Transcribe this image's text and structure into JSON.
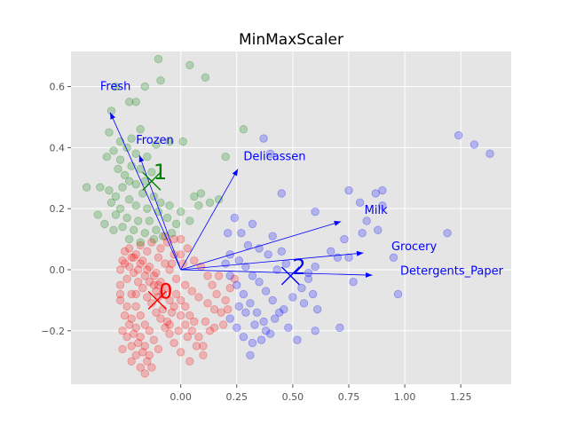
{
  "chart_data": {
    "type": "scatter",
    "title": "MinMaxScaler",
    "xlabel": "",
    "ylabel": "",
    "xlim": [
      -0.49,
      1.475
    ],
    "ylim": [
      -0.375,
      0.715
    ],
    "xticks": [
      0.0,
      0.25,
      0.5,
      0.75,
      1.0,
      1.25
    ],
    "xtick_labels": [
      "0.00",
      "0.25",
      "0.50",
      "0.75",
      "1.00",
      "1.25"
    ],
    "yticks": [
      -0.2,
      0.0,
      0.2,
      0.4,
      0.6
    ],
    "ytick_labels": [
      "−0.2",
      "0.0",
      "0.2",
      "0.4",
      "0.6"
    ],
    "grid": true,
    "background": "#e5e5e5",
    "clusters": [
      {
        "label": "0",
        "color": "#ff0000",
        "center": [
          -0.105,
          -0.1
        ],
        "points": [
          [
            -0.25,
            0.06
          ],
          [
            -0.22,
            0.04
          ],
          [
            -0.18,
            0.02
          ],
          [
            -0.15,
            0.0
          ],
          [
            -0.12,
            -0.02
          ],
          [
            -0.1,
            -0.05
          ],
          [
            -0.08,
            -0.08
          ],
          [
            -0.05,
            -0.1
          ],
          [
            -0.03,
            -0.12
          ],
          [
            0.0,
            -0.15
          ],
          [
            0.02,
            -0.18
          ],
          [
            0.05,
            -0.2
          ],
          [
            0.08,
            -0.22
          ],
          [
            0.1,
            -0.25
          ],
          [
            -0.2,
            -0.28
          ],
          [
            -0.22,
            -0.25
          ],
          [
            -0.24,
            -0.22
          ],
          [
            -0.26,
            -0.2
          ],
          [
            -0.27,
            -0.1
          ],
          [
            -0.27,
            -0.05
          ],
          [
            -0.27,
            0.0
          ],
          [
            -0.26,
            0.03
          ],
          [
            -0.24,
            -0.03
          ],
          [
            -0.22,
            -0.08
          ],
          [
            -0.2,
            -0.12
          ],
          [
            -0.18,
            -0.15
          ],
          [
            -0.16,
            -0.18
          ],
          [
            -0.14,
            -0.2
          ],
          [
            -0.12,
            -0.23
          ],
          [
            -0.1,
            -0.26
          ],
          [
            -0.18,
            0.08
          ],
          [
            -0.15,
            0.06
          ],
          [
            -0.1,
            0.04
          ],
          [
            -0.07,
            0.02
          ],
          [
            -0.05,
            0.0
          ],
          [
            -0.02,
            -0.03
          ],
          [
            0.02,
            -0.05
          ],
          [
            0.05,
            -0.07
          ],
          [
            0.08,
            -0.09
          ],
          [
            0.12,
            -0.11
          ],
          [
            0.15,
            -0.13
          ],
          [
            0.18,
            -0.14
          ],
          [
            -0.23,
            0.01
          ],
          [
            -0.21,
            -0.01
          ],
          [
            -0.19,
            -0.04
          ],
          [
            -0.17,
            -0.06
          ],
          [
            -0.15,
            -0.09
          ],
          [
            -0.13,
            -0.11
          ],
          [
            -0.11,
            -0.14
          ],
          [
            -0.09,
            -0.16
          ],
          [
            -0.07,
            -0.19
          ],
          [
            -0.05,
            -0.21
          ],
          [
            -0.03,
            -0.24
          ],
          [
            0.0,
            -0.27
          ],
          [
            0.04,
            -0.3
          ],
          [
            0.1,
            -0.28
          ],
          [
            -0.25,
            -0.15
          ],
          [
            -0.23,
            -0.18
          ],
          [
            -0.21,
            -0.21
          ],
          [
            -0.19,
            -0.24
          ],
          [
            -0.17,
            -0.27
          ],
          [
            -0.15,
            -0.3
          ],
          [
            -0.13,
            -0.32
          ],
          [
            -0.2,
            0.05
          ],
          [
            -0.17,
            0.03
          ],
          [
            -0.14,
            0.01
          ],
          [
            -0.11,
            -0.01
          ],
          [
            -0.09,
            -0.04
          ],
          [
            -0.06,
            -0.06
          ],
          [
            -0.04,
            0.02
          ],
          [
            0.0,
            0.05
          ],
          [
            0.03,
            0.07
          ],
          [
            0.06,
            0.03
          ],
          [
            0.09,
            0.01
          ],
          [
            0.12,
            -0.02
          ],
          [
            0.14,
            -0.05
          ],
          [
            0.16,
            -0.08
          ],
          [
            0.2,
            -0.1
          ],
          [
            0.22,
            -0.06
          ],
          [
            0.17,
            -0.02
          ],
          [
            -0.26,
            -0.26
          ],
          [
            -0.24,
            -0.12
          ],
          [
            -0.22,
            -0.16
          ],
          [
            -0.2,
            -0.19
          ],
          [
            -0.18,
            -0.22
          ],
          [
            -0.16,
            -0.25
          ],
          [
            -0.14,
            -0.28
          ],
          [
            -0.12,
            -0.05
          ],
          [
            -0.1,
            -0.09
          ],
          [
            -0.08,
            -0.13
          ],
          [
            -0.06,
            -0.17
          ],
          [
            -0.04,
            -0.14
          ],
          [
            -0.02,
            -0.08
          ],
          [
            0.0,
            -0.1
          ],
          [
            0.02,
            -0.12
          ],
          [
            0.04,
            -0.15
          ],
          [
            0.06,
            -0.17
          ],
          [
            -0.13,
            0.09
          ],
          [
            -0.09,
            0.07
          ],
          [
            -0.06,
            0.09
          ],
          [
            -0.03,
            0.05
          ],
          [
            0.01,
            0.02
          ],
          [
            -0.27,
            -0.08
          ],
          [
            -0.25,
            0.02
          ],
          [
            -0.23,
            0.07
          ],
          [
            -0.21,
            0.04
          ],
          [
            -0.19,
            0.0
          ],
          [
            -0.16,
            -0.02
          ],
          [
            -0.14,
            -0.04
          ],
          [
            -0.11,
            -0.07
          ],
          [
            0.07,
            -0.25
          ],
          [
            0.03,
            -0.22
          ],
          [
            -0.01,
            -0.2
          ],
          [
            -0.05,
            -0.18
          ],
          [
            0.11,
            -0.17
          ],
          [
            0.13,
            -0.2
          ],
          [
            0.19,
            -0.18
          ],
          [
            0.21,
            -0.13
          ],
          [
            -0.22,
            -0.3
          ],
          [
            -0.18,
            -0.32
          ],
          [
            -0.16,
            -0.34
          ],
          [
            -0.2,
            -0.08
          ],
          [
            0.24,
            -0.03
          ],
          [
            0.15,
            -0.19
          ],
          [
            -0.07,
            0.11
          ],
          [
            0.0,
            0.1
          ],
          [
            -0.03,
            0.1
          ]
        ]
      },
      {
        "label": "1",
        "color": "#008000",
        "center": [
          -0.13,
          0.29
        ],
        "points": [
          [
            -0.1,
            0.69
          ],
          [
            0.04,
            0.67
          ],
          [
            0.11,
            0.63
          ],
          [
            -0.09,
            0.62
          ],
          [
            -0.16,
            0.6
          ],
          [
            -0.29,
            0.6
          ],
          [
            -0.23,
            0.55
          ],
          [
            -0.2,
            0.55
          ],
          [
            -0.31,
            0.52
          ],
          [
            -0.32,
            0.45
          ],
          [
            -0.18,
            0.46
          ],
          [
            -0.22,
            0.43
          ],
          [
            -0.27,
            0.42
          ],
          [
            -0.11,
            0.41
          ],
          [
            -0.05,
            0.42
          ],
          [
            0.01,
            0.42
          ],
          [
            0.28,
            0.46
          ],
          [
            -0.3,
            0.39
          ],
          [
            -0.24,
            0.4
          ],
          [
            -0.2,
            0.38
          ],
          [
            -0.15,
            0.37
          ],
          [
            -0.33,
            0.37
          ],
          [
            -0.27,
            0.36
          ],
          [
            0.2,
            0.37
          ],
          [
            -0.22,
            0.34
          ],
          [
            -0.18,
            0.33
          ],
          [
            -0.13,
            0.32
          ],
          [
            -0.28,
            0.33
          ],
          [
            -0.25,
            0.31
          ],
          [
            -0.23,
            0.29
          ],
          [
            -0.16,
            0.29
          ],
          [
            -0.2,
            0.28
          ],
          [
            -0.26,
            0.27
          ],
          [
            -0.36,
            0.27
          ],
          [
            -0.32,
            0.26
          ],
          [
            -0.17,
            0.25
          ],
          [
            -0.12,
            0.24
          ],
          [
            -0.29,
            0.24
          ],
          [
            -0.23,
            0.23
          ],
          [
            -0.09,
            0.22
          ],
          [
            0.06,
            0.24
          ],
          [
            0.09,
            0.25
          ],
          [
            -0.31,
            0.22
          ],
          [
            -0.27,
            0.2
          ],
          [
            -0.2,
            0.21
          ],
          [
            -0.15,
            0.2
          ],
          [
            -0.1,
            0.19
          ],
          [
            -0.05,
            0.21
          ],
          [
            0.0,
            0.19
          ],
          [
            0.08,
            0.21
          ],
          [
            0.13,
            0.22
          ],
          [
            0.17,
            0.23
          ],
          [
            -0.29,
            0.18
          ],
          [
            -0.24,
            0.17
          ],
          [
            -0.19,
            0.16
          ],
          [
            -0.14,
            0.16
          ],
          [
            -0.06,
            0.17
          ],
          [
            -0.02,
            0.15
          ],
          [
            0.04,
            0.16
          ],
          [
            -0.26,
            0.14
          ],
          [
            -0.21,
            0.13
          ],
          [
            -0.16,
            0.12
          ],
          [
            -0.11,
            0.13
          ],
          [
            -0.04,
            0.12
          ],
          [
            -0.23,
            0.1
          ],
          [
            -0.18,
            0.09
          ],
          [
            -0.12,
            0.1
          ],
          [
            -0.08,
            0.11
          ],
          [
            -0.3,
            0.13
          ],
          [
            -0.34,
            0.15
          ],
          [
            -0.37,
            0.18
          ],
          [
            -0.42,
            0.27
          ]
        ]
      },
      {
        "label": "2",
        "color": "#0000ff",
        "center": [
          0.49,
          -0.02
        ],
        "points": [
          [
            1.24,
            0.44
          ],
          [
            1.31,
            0.41
          ],
          [
            1.38,
            0.38
          ],
          [
            0.37,
            0.43
          ],
          [
            0.4,
            0.38
          ],
          [
            0.45,
            0.25
          ],
          [
            0.75,
            0.26
          ],
          [
            0.87,
            0.25
          ],
          [
            0.9,
            0.26
          ],
          [
            0.8,
            0.22
          ],
          [
            0.9,
            0.21
          ],
          [
            0.6,
            0.19
          ],
          [
            0.83,
            0.16
          ],
          [
            0.88,
            0.13
          ],
          [
            0.81,
            0.12
          ],
          [
            0.73,
            0.1
          ],
          [
            0.7,
            0.04
          ],
          [
            0.75,
            0.04
          ],
          [
            0.67,
            0.06
          ],
          [
            0.6,
            0.01
          ],
          [
            0.57,
            -0.01
          ],
          [
            1.19,
            0.12
          ],
          [
            0.95,
            0.04
          ],
          [
            0.97,
            -0.08
          ],
          [
            0.77,
            -0.04
          ],
          [
            0.71,
            -0.19
          ],
          [
            0.61,
            -0.13
          ],
          [
            0.59,
            -0.08
          ],
          [
            0.55,
            -0.11
          ],
          [
            0.6,
            -0.2
          ],
          [
            0.52,
            -0.23
          ],
          [
            0.48,
            -0.19
          ],
          [
            0.44,
            -0.14
          ],
          [
            0.41,
            -0.1
          ],
          [
            0.38,
            -0.07
          ],
          [
            0.35,
            -0.04
          ],
          [
            0.32,
            -0.02
          ],
          [
            0.29,
            0.01
          ],
          [
            0.26,
            0.03
          ],
          [
            0.22,
            0.05
          ],
          [
            0.2,
            0.02
          ],
          [
            0.22,
            -0.02
          ],
          [
            0.25,
            -0.05
          ],
          [
            0.28,
            -0.08
          ],
          [
            0.31,
            -0.11
          ],
          [
            0.34,
            -0.14
          ],
          [
            0.37,
            -0.17
          ],
          [
            0.4,
            -0.21
          ],
          [
            0.36,
            -0.23
          ],
          [
            0.32,
            -0.24
          ],
          [
            0.28,
            -0.22
          ],
          [
            0.25,
            -0.19
          ],
          [
            0.22,
            -0.16
          ],
          [
            0.26,
            -0.12
          ],
          [
            0.29,
            -0.14
          ],
          [
            0.33,
            -0.18
          ],
          [
            0.38,
            -0.2
          ],
          [
            0.42,
            -0.16
          ],
          [
            0.46,
            -0.13
          ],
          [
            0.5,
            -0.09
          ],
          [
            0.54,
            -0.06
          ],
          [
            0.57,
            -0.03
          ],
          [
            0.31,
            -0.28
          ],
          [
            0.39,
            0.05
          ],
          [
            0.43,
            0.0
          ],
          [
            0.47,
            0.02
          ],
          [
            0.35,
            0.07
          ],
          [
            0.27,
            0.12
          ],
          [
            0.21,
            0.12
          ],
          [
            0.3,
            0.08
          ],
          [
            0.24,
            0.17
          ],
          [
            0.32,
            0.15
          ],
          [
            0.41,
            0.11
          ],
          [
            0.45,
            0.06
          ]
        ]
      }
    ],
    "loadings": [
      {
        "name": "Fresh",
        "x": -0.315,
        "y": 0.515,
        "label_x": -0.36,
        "label_y": 0.6
      },
      {
        "name": "Frozen",
        "x": -0.185,
        "y": 0.375,
        "label_x": -0.2,
        "label_y": 0.425
      },
      {
        "name": "Delicassen",
        "x": 0.255,
        "y": 0.33,
        "label_x": 0.28,
        "label_y": 0.37
      },
      {
        "name": "Milk",
        "x": 0.715,
        "y": 0.158,
        "label_x": 0.82,
        "label_y": 0.195
      },
      {
        "name": "Grocery",
        "x": 0.815,
        "y": 0.055,
        "label_x": 0.94,
        "label_y": 0.075
      },
      {
        "name": "Detergents_Paper",
        "x": 0.855,
        "y": -0.018,
        "label_x": 0.98,
        "label_y": -0.005
      }
    ],
    "arrow_color": "#0000ff"
  }
}
